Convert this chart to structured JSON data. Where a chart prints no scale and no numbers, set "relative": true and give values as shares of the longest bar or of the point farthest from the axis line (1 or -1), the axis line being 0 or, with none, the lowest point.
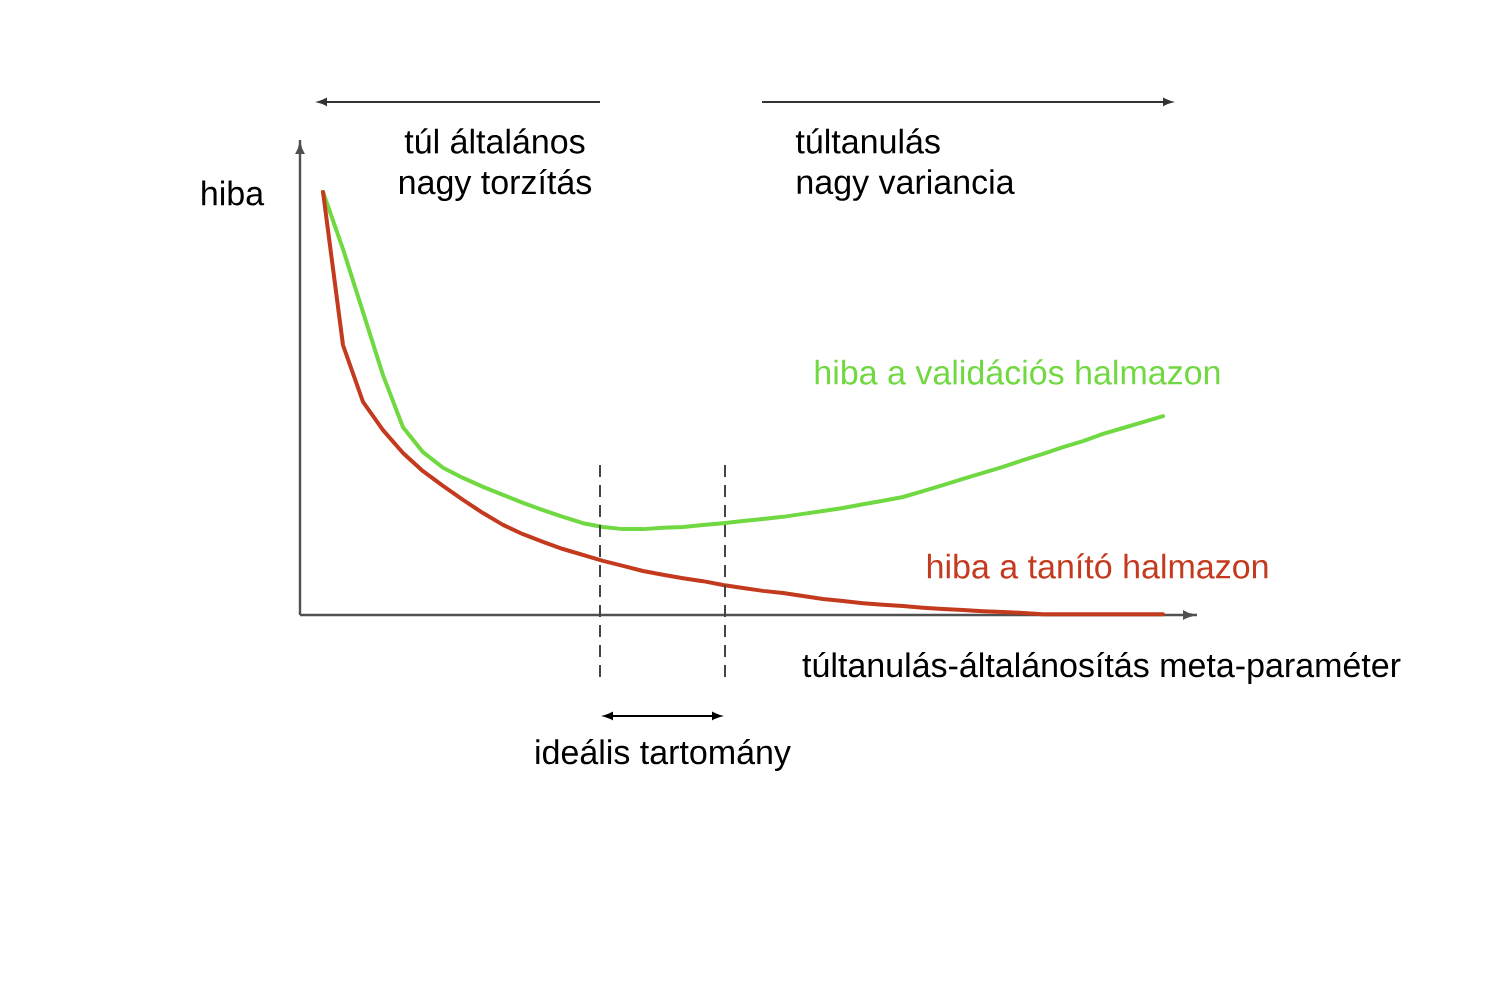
{
  "chart_data": {
    "type": "line",
    "relative": true,
    "categories": [
      null,
      null,
      null,
      null,
      null,
      null,
      null,
      null,
      null,
      null,
      null,
      null,
      null,
      null,
      null,
      null,
      null,
      null,
      null,
      null,
      null,
      null,
      null,
      null,
      null,
      null,
      null,
      null,
      null,
      null,
      null,
      null,
      null,
      null,
      null,
      null,
      null,
      null,
      null,
      null,
      null,
      null,
      null
    ],
    "xlabel": "túltanulás-általánosítás meta-paraméter",
    "ylabel": "hiba",
    "series": [
      {
        "name": "hiba a validációs halmazon",
        "color": "#70d840",
        "values": [
          1.0,
          0.865,
          0.716,
          0.567,
          0.444,
          0.385,
          0.348,
          0.324,
          0.303,
          0.284,
          0.265,
          0.248,
          0.232,
          0.217,
          0.208,
          0.203,
          0.203,
          0.206,
          0.208,
          0.213,
          0.217,
          0.222,
          0.227,
          0.232,
          0.239,
          0.246,
          0.253,
          0.262,
          0.27,
          0.279,
          0.293,
          0.307,
          0.322,
          0.336,
          0.35,
          0.366,
          0.381,
          0.397,
          0.411,
          0.428,
          0.442,
          0.456,
          0.47
        ]
      },
      {
        "name": "hiba a tanító halmazon",
        "color": "#c43a1e",
        "values": [
          1.0,
          0.638,
          0.504,
          0.437,
          0.383,
          0.34,
          0.305,
          0.272,
          0.241,
          0.213,
          0.191,
          0.173,
          0.156,
          0.142,
          0.128,
          0.116,
          0.104,
          0.095,
          0.087,
          0.08,
          0.071,
          0.064,
          0.057,
          0.052,
          0.045,
          0.038,
          0.033,
          0.028,
          0.024,
          0.021,
          0.017,
          0.014,
          0.012,
          0.009,
          0.007,
          0.005,
          0.002,
          0.002,
          0.002,
          0.002,
          0.002,
          0.002,
          0.002
        ]
      }
    ],
    "annotations": [
      "túl általános",
      "nagy torzítás",
      "túltanulás",
      "nagy variancia",
      "ideális tartomány"
    ]
  }
}
